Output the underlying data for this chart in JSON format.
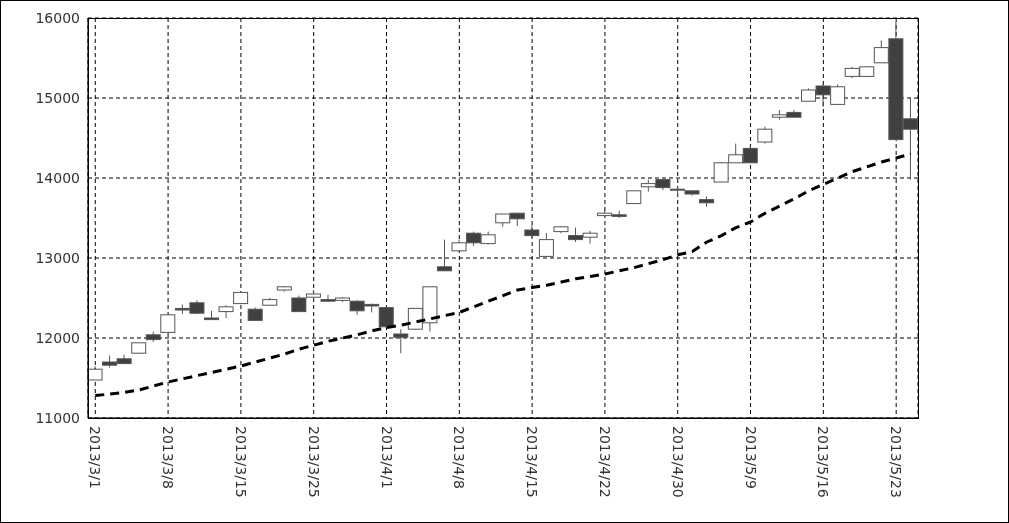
{
  "chart_data": {
    "type": "candlestick",
    "categories": [
      "2013/3/1",
      null,
      null,
      null,
      null,
      "2013/3/8",
      null,
      null,
      null,
      null,
      "2013/3/15",
      null,
      null,
      null,
      null,
      "2013/3/25",
      null,
      null,
      null,
      null,
      "2013/4/1",
      null,
      null,
      null,
      null,
      "2013/4/8",
      null,
      null,
      null,
      null,
      "2013/4/15",
      null,
      null,
      null,
      null,
      "2013/4/22",
      null,
      null,
      null,
      null,
      "2013/4/30",
      null,
      null,
      null,
      null,
      "2013/5/9",
      null,
      null,
      null,
      null,
      "2013/5/16",
      null,
      null,
      null,
      null,
      "2013/5/23",
      null
    ],
    "ohlc": [
      [
        11475,
        11650,
        11475,
        11610
      ],
      [
        11700,
        11780,
        11630,
        11660
      ],
      [
        11740,
        11790,
        11680,
        11680
      ],
      [
        11810,
        11940,
        11800,
        11940
      ],
      [
        12040,
        12080,
        11950,
        11980
      ],
      [
        12070,
        12290,
        12070,
        12290
      ],
      [
        12370,
        12420,
        12300,
        12350
      ],
      [
        12440,
        12470,
        12300,
        12310
      ],
      [
        12250,
        12340,
        12230,
        12230
      ],
      [
        12330,
        12410,
        12250,
        12390
      ],
      [
        12430,
        12570,
        12430,
        12570
      ],
      [
        12360,
        12380,
        12220,
        12220
      ],
      [
        12410,
        12500,
        12400,
        12480
      ],
      [
        12600,
        12650,
        12580,
        12640
      ],
      [
        12500,
        12530,
        12330,
        12330
      ],
      [
        12510,
        12600,
        12490,
        12550
      ],
      [
        12480,
        12540,
        12450,
        12460
      ],
      [
        12470,
        12510,
        12450,
        12500
      ],
      [
        12460,
        12470,
        12290,
        12340
      ],
      [
        12420,
        12430,
        12320,
        12400
      ],
      [
        12380,
        12400,
        12130,
        12140
      ],
      [
        12050,
        12110,
        11810,
        12010
      ],
      [
        12110,
        12370,
        12100,
        12370
      ],
      [
        12190,
        12640,
        12080,
        12640
      ],
      [
        12890,
        13230,
        12840,
        12840
      ],
      [
        13090,
        13230,
        13080,
        13190
      ],
      [
        13310,
        13330,
        13150,
        13190
      ],
      [
        13180,
        13330,
        13170,
        13290
      ],
      [
        13440,
        13550,
        13390,
        13550
      ],
      [
        13560,
        13560,
        13400,
        13490
      ],
      [
        13350,
        13410,
        13250,
        13280
      ],
      [
        13020,
        13310,
        13010,
        13230
      ],
      [
        13330,
        13400,
        13310,
        13390
      ],
      [
        13280,
        13380,
        13200,
        13230
      ],
      [
        13260,
        13340,
        13180,
        13310
      ],
      [
        13530,
        13610,
        13520,
        13560
      ],
      [
        13540,
        13590,
        13500,
        13520
      ],
      [
        13680,
        13840,
        13680,
        13840
      ],
      [
        13890,
        13980,
        13830,
        13930
      ],
      [
        13980,
        13980,
        13850,
        13880
      ],
      [
        13860,
        13890,
        13780,
        13850
      ],
      [
        13840,
        13840,
        13780,
        13800
      ],
      [
        13730,
        13770,
        13640,
        13690
      ],
      [
        13950,
        14200,
        13950,
        14190
      ],
      [
        14190,
        14430,
        14190,
        14290
      ],
      [
        14370,
        14410,
        14190,
        14190
      ],
      [
        14450,
        14640,
        14430,
        14610
      ],
      [
        14760,
        14850,
        14730,
        14790
      ],
      [
        14820,
        14850,
        14760,
        14760
      ],
      [
        14960,
        15120,
        14960,
        15100
      ],
      [
        15150,
        15170,
        14890,
        15040
      ],
      [
        14920,
        15170,
        14920,
        15140
      ],
      [
        15270,
        15390,
        15250,
        15370
      ],
      [
        15270,
        15400,
        15260,
        15390
      ],
      [
        15440,
        15720,
        15440,
        15630
      ],
      [
        15740,
        15950,
        14480,
        14480
      ],
      [
        14740,
        15010,
        13980,
        14610
      ]
    ],
    "colors": [
      "#ffffff",
      "#404040",
      "#404040",
      "#ffffff",
      "#404040",
      "#ffffff",
      "#404040",
      "#404040",
      "#404040",
      "#ffffff",
      "#ffffff",
      "#404040",
      "#ffffff",
      "#ffffff",
      "#404040",
      "#ffffff",
      "#404040",
      "#ffffff",
      "#404040",
      "#404040",
      "#404040",
      "#404040",
      "#ffffff",
      "#ffffff",
      "#404040",
      "#ffffff",
      "#404040",
      "#ffffff",
      "#ffffff",
      "#404040",
      "#404040",
      "#ffffff",
      "#ffffff",
      "#404040",
      "#ffffff",
      "#ffffff",
      "#404040",
      "#ffffff",
      "#ffffff",
      "#404040",
      "#404040",
      "#404040",
      "#404040",
      "#ffffff",
      "#ffffff",
      "#404040",
      "#ffffff",
      "#ffffff",
      "#404040",
      "#ffffff",
      "#404040",
      "#ffffff",
      "#ffffff",
      "#ffffff",
      "#ffffff",
      "#404040",
      "#404040"
    ],
    "series": [
      {
        "type": "line",
        "color": "#000000",
        "line_style": "dashed",
        "values": [
          11280,
          11300,
          11320,
          11350,
          11400,
          11450,
          11490,
          11530,
          11570,
          11610,
          11650,
          11700,
          11750,
          11800,
          11860,
          11910,
          11960,
          12000,
          12040,
          12090,
          12130,
          12160,
          12200,
          12240,
          12280,
          12320,
          12390,
          12460,
          12530,
          12600,
          12630,
          12660,
          12700,
          12740,
          12770,
          12800,
          12840,
          12880,
          12930,
          12980,
          13040,
          13080,
          13200,
          13280,
          13380,
          13450,
          13560,
          13650,
          13740,
          13840,
          13920,
          14000,
          14080,
          14140,
          14200,
          14250,
          14300
        ]
      }
    ],
    "marker": "none",
    "ylim": [
      11000,
      16000
    ],
    "yticks": [
      11000,
      12000,
      13000,
      14000,
      15000,
      16000
    ],
    "grid": true
  }
}
